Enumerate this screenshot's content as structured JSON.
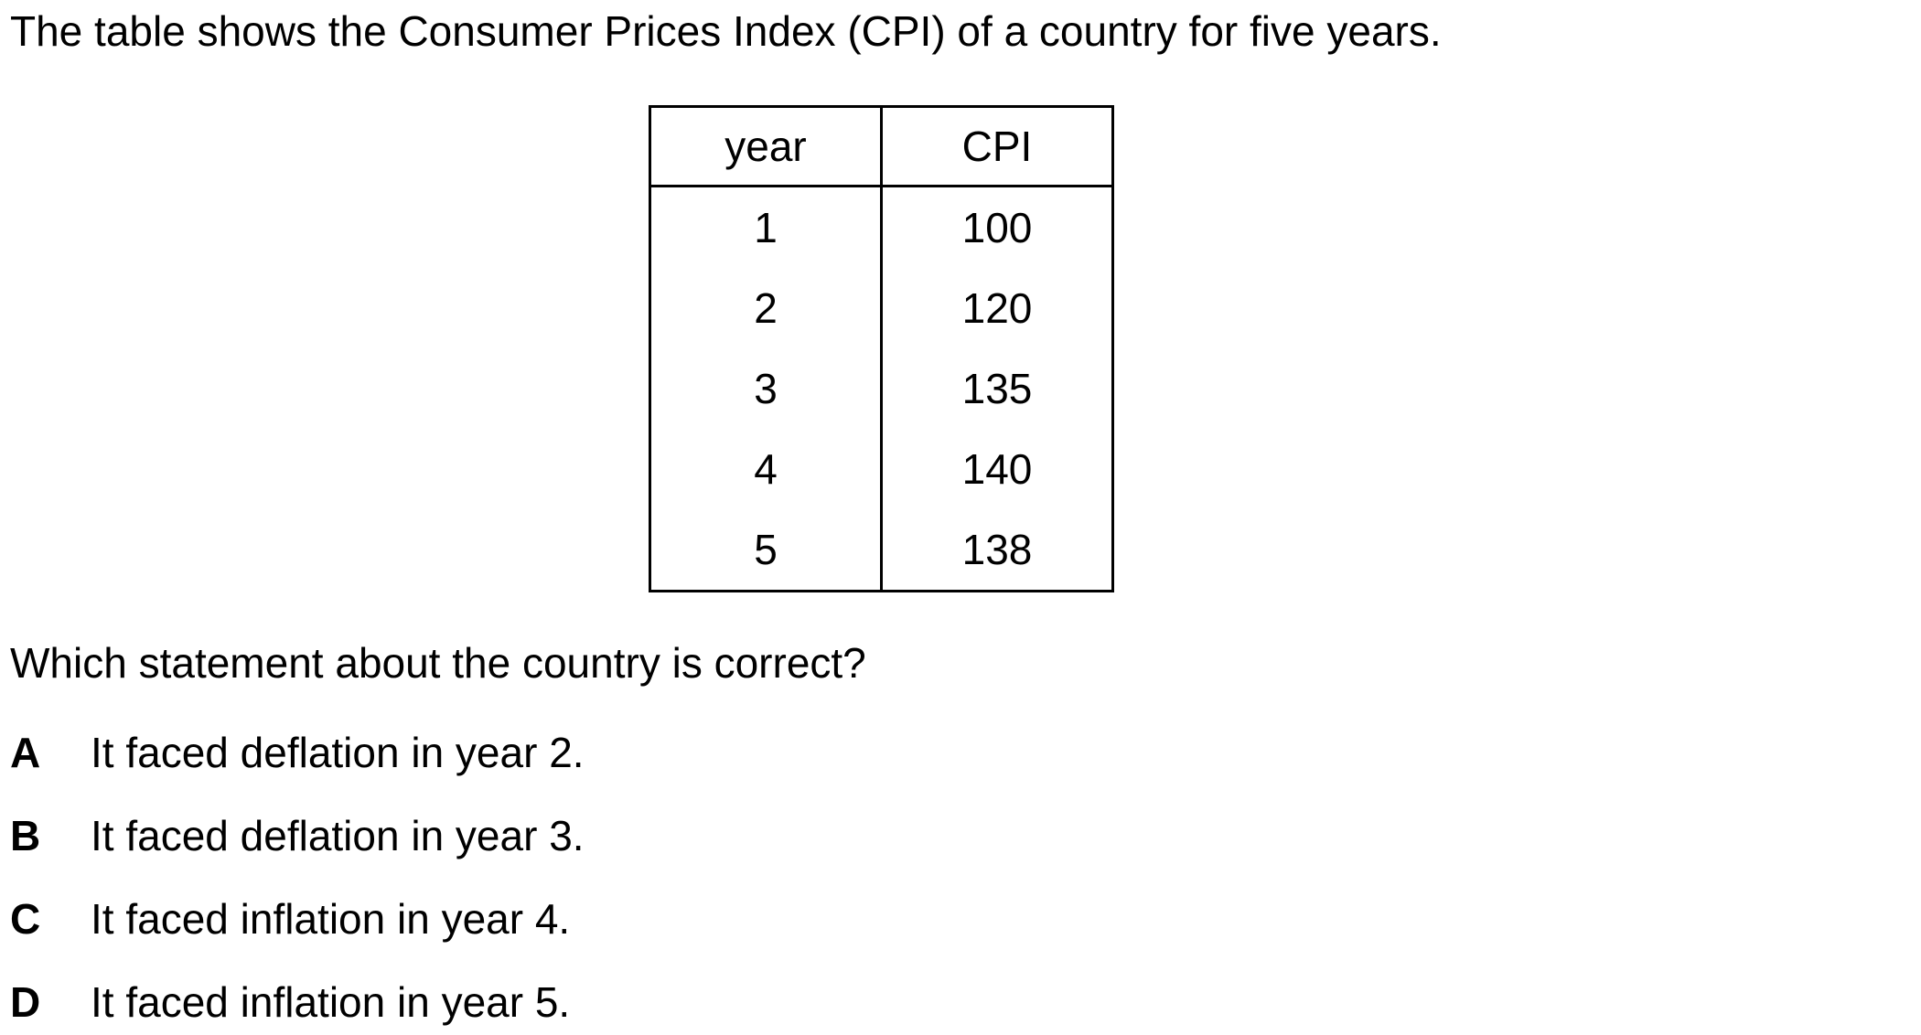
{
  "intro": "The table shows the Consumer Prices Index (CPI) of a country for five years.",
  "table": {
    "headers": [
      "year",
      "CPI"
    ],
    "rows": [
      [
        "1",
        "100"
      ],
      [
        "2",
        "120"
      ],
      [
        "3",
        "135"
      ],
      [
        "4",
        "140"
      ],
      [
        "5",
        "138"
      ]
    ]
  },
  "question": "Which statement about the country is correct?",
  "options": [
    {
      "letter": "A",
      "text": "It faced deflation in year 2."
    },
    {
      "letter": "B",
      "text": "It faced deflation in year 3."
    },
    {
      "letter": "C",
      "text": "It faced inflation in year 4."
    },
    {
      "letter": "D",
      "text": "It faced inflation in year 5."
    }
  ]
}
